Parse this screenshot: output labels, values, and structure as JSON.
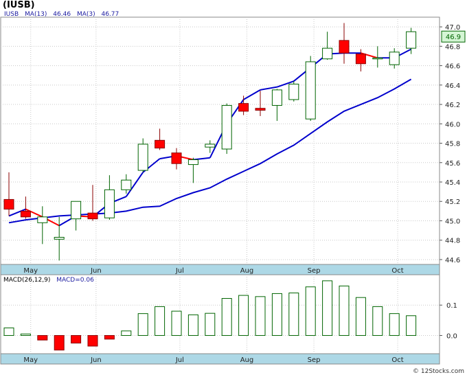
{
  "header": {
    "title": "(IUSB)",
    "legend": [
      {
        "label": "IUSB",
        "value": ""
      },
      {
        "label": "MA(13)",
        "value": "46.46"
      },
      {
        "label": "MA(3)",
        "value": "46.77"
      }
    ]
  },
  "macd_header": {
    "label": "MACD(26,12,9)",
    "value_text": "MACD=0.06"
  },
  "watermark": "© 12Stocks.com",
  "colors": {
    "up": "#006400",
    "down": "#ff0000",
    "ma13": "#0000cc",
    "ma3_up": "#0000cc",
    "ma3_down": "#ff0000",
    "axis_band": "#add8e6"
  },
  "chart_data": [
    {
      "type": "candlestick",
      "title": "(IUSB)",
      "ylim": [
        44.55,
        47.1
      ],
      "y_ticks": [
        "44.6",
        "44.8",
        "45.0",
        "45.2",
        "45.4",
        "45.6",
        "45.8",
        "46.0",
        "46.2",
        "46.4",
        "46.6",
        "46.8",
        "47.0"
      ],
      "x_ticks": [
        {
          "label": "May",
          "index": 1.3
        },
        {
          "label": "Jun",
          "index": 5.2
        },
        {
          "label": "Jul",
          "index": 10.2
        },
        {
          "label": "Aug",
          "index": 14.2
        },
        {
          "label": "Sep",
          "index": 18.2
        },
        {
          "label": "Oct",
          "index": 23.2
        }
      ],
      "last_price": "46.9",
      "last_value": 46.9,
      "candles": [
        {
          "o": 45.22,
          "h": 45.5,
          "l": 45.05,
          "c": 45.12
        },
        {
          "o": 45.1,
          "h": 45.25,
          "l": 45.02,
          "c": 45.04
        },
        {
          "o": 44.98,
          "h": 45.15,
          "l": 44.76,
          "c": 45.04
        },
        {
          "o": 44.81,
          "h": 45.04,
          "l": 44.59,
          "c": 44.83
        },
        {
          "o": 45.02,
          "h": 45.2,
          "l": 44.9,
          "c": 45.2
        },
        {
          "o": 45.08,
          "h": 45.37,
          "l": 45.0,
          "c": 45.02
        },
        {
          "o": 45.03,
          "h": 45.47,
          "l": 45.01,
          "c": 45.32
        },
        {
          "o": 45.32,
          "h": 45.48,
          "l": 45.28,
          "c": 45.42
        },
        {
          "o": 45.52,
          "h": 45.85,
          "l": 45.5,
          "c": 45.79
        },
        {
          "o": 45.83,
          "h": 45.95,
          "l": 45.73,
          "c": 45.75
        },
        {
          "o": 45.7,
          "h": 45.75,
          "l": 45.53,
          "c": 45.59
        },
        {
          "o": 45.58,
          "h": 45.65,
          "l": 45.39,
          "c": 45.63
        },
        {
          "o": 45.76,
          "h": 45.83,
          "l": 45.7,
          "c": 45.79
        },
        {
          "o": 45.74,
          "h": 46.21,
          "l": 45.69,
          "c": 46.19
        },
        {
          "o": 46.21,
          "h": 46.29,
          "l": 46.09,
          "c": 46.13
        },
        {
          "o": 46.16,
          "h": 46.34,
          "l": 46.08,
          "c": 46.14
        },
        {
          "o": 46.19,
          "h": 46.36,
          "l": 46.03,
          "c": 46.35
        },
        {
          "o": 46.25,
          "h": 46.44,
          "l": 46.23,
          "c": 46.41
        },
        {
          "o": 46.05,
          "h": 46.7,
          "l": 46.03,
          "c": 46.64
        },
        {
          "o": 46.67,
          "h": 46.95,
          "l": 46.66,
          "c": 46.78
        },
        {
          "o": 46.86,
          "h": 47.04,
          "l": 46.62,
          "c": 46.73
        },
        {
          "o": 46.72,
          "h": 46.77,
          "l": 46.54,
          "c": 46.62
        },
        {
          "o": 46.68,
          "h": 46.8,
          "l": 46.58,
          "c": 46.68
        },
        {
          "o": 46.61,
          "h": 46.78,
          "l": 46.57,
          "c": 46.74
        },
        {
          "o": 46.78,
          "h": 46.99,
          "l": 46.72,
          "c": 46.95
        }
      ],
      "ma13": [
        44.98,
        45.01,
        45.03,
        45.05,
        45.06,
        45.07,
        45.08,
        45.1,
        45.14,
        45.15,
        45.23,
        45.29,
        45.34,
        45.43,
        45.51,
        45.59,
        45.69,
        45.78,
        45.9,
        46.02,
        46.13,
        46.2,
        46.27,
        46.36,
        46.46
      ],
      "ma3": [
        45.05,
        45.12,
        45.04,
        44.95,
        45.05,
        45.04,
        45.18,
        45.25,
        45.5,
        45.64,
        45.67,
        45.63,
        45.65,
        46.0,
        46.25,
        46.35,
        46.38,
        46.44,
        46.58,
        46.72,
        46.73,
        46.73,
        46.68,
        46.68,
        46.77
      ]
    },
    {
      "type": "bar",
      "title": "MACD(26,12,9)",
      "ylim": [
        -0.06,
        0.2
      ],
      "y_ticks": [
        {
          "label": "0.0",
          "value": 0.0
        },
        {
          "label": "0.1",
          "value": 0.1
        }
      ],
      "x_ticks": [
        {
          "label": "May",
          "index": 1.3
        },
        {
          "label": "Jun",
          "index": 5.2
        },
        {
          "label": "Jul",
          "index": 10.2
        },
        {
          "label": "Aug",
          "index": 14.2
        },
        {
          "label": "Sep",
          "index": 18.2
        },
        {
          "label": "Oct",
          "index": 23.2
        }
      ],
      "values": [
        0.025,
        0.005,
        -0.015,
        -0.048,
        -0.025,
        -0.035,
        -0.012,
        0.015,
        0.072,
        0.095,
        0.08,
        0.068,
        0.073,
        0.122,
        0.132,
        0.128,
        0.138,
        0.14,
        0.16,
        0.18,
        0.163,
        0.125,
        0.095,
        0.072,
        0.065
      ]
    }
  ]
}
